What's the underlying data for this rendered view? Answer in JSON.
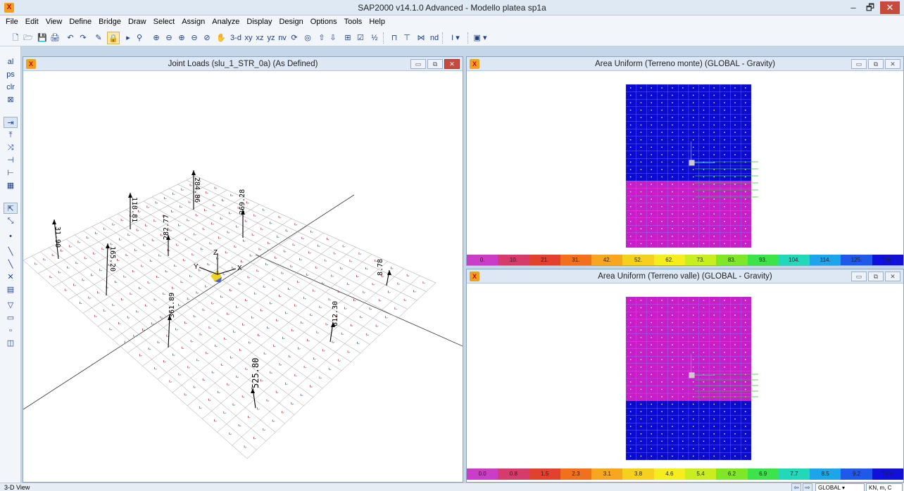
{
  "app": {
    "title": "SAP2000 v14.1.0 Advanced  - Modello platea sp1a",
    "min": "‒",
    "max": "🗗",
    "close": "✕"
  },
  "menu": [
    "File",
    "Edit",
    "View",
    "Define",
    "Bridge",
    "Draw",
    "Select",
    "Assign",
    "Analyze",
    "Display",
    "Design",
    "Options",
    "Tools",
    "Help"
  ],
  "toolbar": {
    "view_3d": "3-d",
    "view_xy": "xy",
    "view_xz": "xz",
    "view_yz": "yz",
    "view_nv": "nv",
    "nd": "nd"
  },
  "windows": {
    "joint": {
      "title": "Joint Loads (slu_1_STR_0a) (As Defined)",
      "labels": [
        "284.86",
        "118.81",
        "269.28",
        "282.77",
        "31.90",
        "165.20",
        "361.89",
        "612.30",
        "8.78",
        "525.80"
      ]
    },
    "monte": {
      "title": "Area Uniform (Terreno monte) (GLOBAL - Gravity)",
      "legend": [
        "0.",
        "10.",
        "21.",
        "31.",
        "42.",
        "52.",
        "62.",
        "73.",
        "83.",
        "93.",
        "104.",
        "114.",
        "125.",
        "135."
      ]
    },
    "valle": {
      "title": "Area Uniform (Terreno valle) (GLOBAL - Gravity)",
      "legend": [
        "0.0",
        "0.8",
        "1.5",
        "2.3",
        "3.1",
        "3.8",
        "4.6",
        "5.4",
        "6.2",
        "6.9",
        "7.7",
        "8.5",
        "9.2",
        "10.0"
      ]
    }
  },
  "axes": {
    "x": "X",
    "y": "Y",
    "z": "Z"
  },
  "colors": {
    "legend": [
      "#c83ec8",
      "#d63c6b",
      "#e0422c",
      "#f0701e",
      "#f7a620",
      "#f8cf1e",
      "#f5ee1c",
      "#c8ee20",
      "#7ee828",
      "#3ee24a",
      "#22d8b8",
      "#1ea4e8",
      "#1e5ae8",
      "#1010d8"
    ],
    "blue_area": "#0a0ad0",
    "magenta_area": "#c81ec8"
  },
  "status": {
    "view": "3-D View",
    "coord": "GLOBAL",
    "units": "KN, m, C"
  }
}
